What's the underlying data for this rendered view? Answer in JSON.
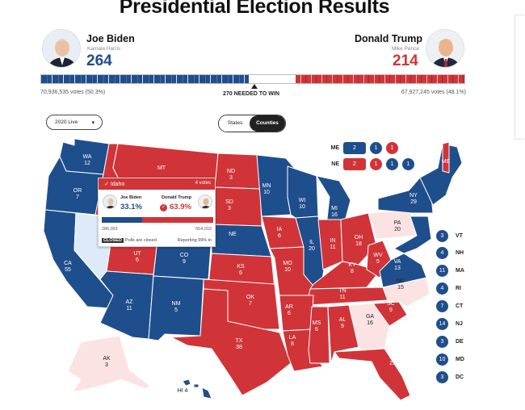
{
  "title": "Presidential Election Results",
  "candidates": {
    "left": {
      "name": "Joe Biden",
      "running_mate": "Kamala Harris",
      "electoral_votes": "264",
      "popular_votes": "70,936,535 votes (50.3%)",
      "color": "#1f4e8c"
    },
    "right": {
      "name": "Donald Trump",
      "running_mate": "Mike Pence",
      "electoral_votes": "214",
      "popular_votes": "67,927,245 votes (48.1%)",
      "color": "#d13438"
    }
  },
  "ev_bar": {
    "needed_label": "270 NEEDED TO WIN",
    "biden_fraction": 0.491,
    "trump_fraction": 0.398
  },
  "controls": {
    "year_select": "2020 Live",
    "view_toggle": [
      "States",
      "Counties"
    ],
    "view_selected": "Counties"
  },
  "split_states": [
    {
      "state": "ME",
      "votes": [
        "2",
        "1",
        "1"
      ],
      "colors": [
        "blue",
        "blue",
        "red"
      ]
    },
    {
      "state": "NE",
      "votes": [
        "2",
        "1",
        "1",
        "1"
      ],
      "colors": [
        "red",
        "red",
        "blue",
        "blue"
      ]
    }
  ],
  "northeast": [
    {
      "state": "VT",
      "ev": "3",
      "color": "blue"
    },
    {
      "state": "NH",
      "ev": "4",
      "color": "blue"
    },
    {
      "state": "MA",
      "ev": "11",
      "color": "blue"
    },
    {
      "state": "RI",
      "ev": "4",
      "color": "blue"
    },
    {
      "state": "CT",
      "ev": "7",
      "color": "blue"
    },
    {
      "state": "NJ",
      "ev": "14",
      "color": "blue"
    },
    {
      "state": "DE",
      "ev": "3",
      "color": "blue"
    },
    {
      "state": "MD",
      "ev": "10",
      "color": "blue"
    },
    {
      "state": "DC",
      "ev": "3",
      "color": "blue"
    }
  ],
  "state_labels": [
    {
      "st": "WA",
      "ev": "12"
    },
    {
      "st": "OR",
      "ev": "7"
    },
    {
      "st": "CA",
      "ev": "55"
    },
    {
      "st": "MT",
      "ev": ""
    },
    {
      "st": "ND",
      "ev": "3"
    },
    {
      "st": "SD",
      "ev": "3"
    },
    {
      "st": "MN",
      "ev": "10"
    },
    {
      "st": "WI",
      "ev": "10"
    },
    {
      "st": "MI",
      "ev": "16"
    },
    {
      "st": "NY",
      "ev": "29"
    },
    {
      "st": "PA",
      "ev": "20"
    },
    {
      "st": "IA",
      "ev": "6"
    },
    {
      "st": "NE",
      "ev": ""
    },
    {
      "st": "UT",
      "ev": "6"
    },
    {
      "st": "CO",
      "ev": "9"
    },
    {
      "st": "KS",
      "ev": "6"
    },
    {
      "st": "MO",
      "ev": "10"
    },
    {
      "st": "IL",
      "ev": "20"
    },
    {
      "st": "IN",
      "ev": "11"
    },
    {
      "st": "OH",
      "ev": "18"
    },
    {
      "st": "KY",
      "ev": "8"
    },
    {
      "st": "WV",
      "ev": "5"
    },
    {
      "st": "VA",
      "ev": "13"
    },
    {
      "st": "NC",
      "ev": "15"
    },
    {
      "st": "AZ",
      "ev": "11"
    },
    {
      "st": "NM",
      "ev": "5"
    },
    {
      "st": "OK",
      "ev": "7"
    },
    {
      "st": "AR",
      "ev": "6"
    },
    {
      "st": "TN",
      "ev": "11"
    },
    {
      "st": "SC",
      "ev": "9"
    },
    {
      "st": "TX",
      "ev": "38"
    },
    {
      "st": "LA",
      "ev": "8"
    },
    {
      "st": "MS",
      "ev": "6"
    },
    {
      "st": "AL",
      "ev": "9"
    },
    {
      "st": "GA",
      "ev": "16"
    },
    {
      "st": "FL",
      "ev": "29"
    },
    {
      "st": "AK",
      "ev": "3"
    },
    {
      "st": "HI",
      "ev": "4"
    },
    {
      "st": "ME",
      "ev": ""
    }
  ],
  "popup": {
    "state": "Idaho",
    "ev_label": "4 votes",
    "biden_name": "Joe Biden",
    "biden_pct": "33.1%",
    "trump_name": "Donald Trump",
    "trump_pct": "63.9%",
    "biden_votes": "286,991",
    "trump_votes": "554,019",
    "trump_fraction": 0.639,
    "closed_tag": "CLOSED",
    "closed_text": "Polls are closed",
    "reporting": "Reporting 99% in"
  },
  "colors": {
    "dem": "#1f4e8c",
    "rep": "#d13438",
    "lean_dem": "#deeaf7",
    "lean_rep": "#fbe3e3"
  }
}
